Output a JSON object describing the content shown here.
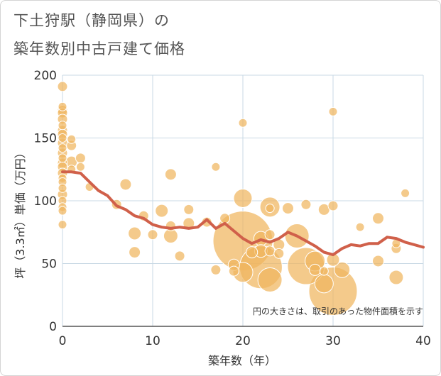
{
  "chart_data": {
    "type": "scatter",
    "title_line1": "下土狩駅（静岡県）の",
    "title_line2": "築年数別中古戸建て価格",
    "xlabel": "築年数（年）",
    "ylabel": "坪（3.3㎡）単価（万円）",
    "xlim": [
      0,
      40
    ],
    "ylim": [
      0,
      200
    ],
    "x_ticks": [
      "0",
      "10",
      "20",
      "30",
      "40"
    ],
    "y_ticks": [
      "0",
      "50",
      "100",
      "150",
      "200"
    ],
    "note": "円の大きさは、取引のあった物件面積を示す",
    "colors": {
      "bubble": "#f0b65e",
      "line": "#d0604a",
      "grid": "#c8d8e4"
    },
    "series": [
      {
        "kind": "bubbles",
        "points": [
          [
            0,
            191,
            7
          ],
          [
            0,
            175,
            6
          ],
          [
            0,
            172,
            7
          ],
          [
            0,
            170,
            7
          ],
          [
            0,
            165,
            7
          ],
          [
            0,
            160,
            6
          ],
          [
            0,
            156,
            7
          ],
          [
            0,
            153,
            7
          ],
          [
            0,
            150,
            6
          ],
          [
            0,
            146,
            7
          ],
          [
            0,
            142,
            6
          ],
          [
            0,
            138,
            7
          ],
          [
            0,
            134,
            6
          ],
          [
            0,
            130,
            7
          ],
          [
            0,
            127,
            7
          ],
          [
            0,
            122,
            7
          ],
          [
            0,
            118,
            6
          ],
          [
            0,
            115,
            6
          ],
          [
            0,
            110,
            6
          ],
          [
            0,
            105,
            7
          ],
          [
            0,
            100,
            6
          ],
          [
            0,
            95,
            6
          ],
          [
            0,
            92,
            6
          ],
          [
            0,
            81,
            6
          ],
          [
            1,
            149,
            6
          ],
          [
            1,
            144,
            7
          ],
          [
            1,
            131,
            8
          ],
          [
            1,
            125,
            6
          ],
          [
            2,
            134,
            7
          ],
          [
            2,
            127,
            6
          ],
          [
            3,
            111,
            6
          ],
          [
            6,
            97,
            7
          ],
          [
            7,
            113,
            8
          ],
          [
            8,
            74,
            9
          ],
          [
            8,
            59,
            8
          ],
          [
            9,
            88,
            7
          ],
          [
            10,
            73,
            7
          ],
          [
            11,
            92,
            9
          ],
          [
            12,
            121,
            8
          ],
          [
            12,
            80,
            7
          ],
          [
            12,
            72,
            10
          ],
          [
            13,
            56,
            7
          ],
          [
            14,
            93,
            7
          ],
          [
            14,
            82,
            8
          ],
          [
            16,
            83,
            7
          ],
          [
            17,
            127,
            6
          ],
          [
            17,
            45,
            7
          ],
          [
            18,
            86,
            7
          ],
          [
            19,
            49,
            8
          ],
          [
            19,
            44,
            7
          ],
          [
            20,
            162,
            6
          ],
          [
            20,
            102,
            13
          ],
          [
            20,
            68,
            42
          ],
          [
            20,
            43,
            14
          ],
          [
            21,
            59,
            8
          ],
          [
            22,
            70,
            10
          ],
          [
            22,
            47,
            30
          ],
          [
            22,
            60,
            9
          ],
          [
            23,
            95,
            14
          ],
          [
            23,
            94,
            6
          ],
          [
            23,
            73,
            7
          ],
          [
            23,
            60,
            7
          ],
          [
            23,
            37,
            17
          ],
          [
            24,
            65,
            8
          ],
          [
            24,
            58,
            7
          ],
          [
            25,
            94,
            8
          ],
          [
            26,
            72,
            17
          ],
          [
            27,
            97,
            7
          ],
          [
            27,
            48,
            26
          ],
          [
            28,
            52,
            14
          ],
          [
            28,
            45,
            8
          ],
          [
            29,
            93,
            8
          ],
          [
            29,
            44,
            6
          ],
          [
            29,
            34,
            13
          ],
          [
            30,
            171,
            6
          ],
          [
            30,
            96,
            7
          ],
          [
            30,
            53,
            9
          ],
          [
            30,
            28,
            34
          ],
          [
            31,
            45,
            11
          ],
          [
            33,
            79,
            6
          ],
          [
            35,
            86,
            8
          ],
          [
            35,
            52,
            8
          ],
          [
            37,
            62,
            7
          ],
          [
            37,
            66,
            6
          ],
          [
            37,
            39,
            10
          ],
          [
            38,
            106,
            6
          ]
        ]
      },
      {
        "kind": "line",
        "points": [
          [
            0,
            123
          ],
          [
            1,
            123
          ],
          [
            2,
            122
          ],
          [
            3,
            115
          ],
          [
            4,
            108
          ],
          [
            5,
            104
          ],
          [
            6,
            96
          ],
          [
            7,
            93
          ],
          [
            8,
            88
          ],
          [
            9,
            86
          ],
          [
            10,
            81
          ],
          [
            11,
            79
          ],
          [
            12,
            78
          ],
          [
            13,
            79
          ],
          [
            14,
            78
          ],
          [
            15,
            79
          ],
          [
            16,
            85
          ],
          [
            17,
            78
          ],
          [
            18,
            82
          ],
          [
            19,
            76
          ],
          [
            20,
            70
          ],
          [
            21,
            66
          ],
          [
            22,
            69
          ],
          [
            23,
            67
          ],
          [
            24,
            70
          ],
          [
            25,
            75
          ],
          [
            26,
            72
          ],
          [
            27,
            68
          ],
          [
            28,
            64
          ],
          [
            29,
            59
          ],
          [
            30,
            57
          ],
          [
            31,
            62
          ],
          [
            32,
            65
          ],
          [
            33,
            64
          ],
          [
            34,
            66
          ],
          [
            35,
            66
          ],
          [
            36,
            71
          ],
          [
            37,
            70
          ],
          [
            38,
            67
          ],
          [
            39,
            65
          ],
          [
            40,
            63
          ]
        ]
      }
    ]
  }
}
